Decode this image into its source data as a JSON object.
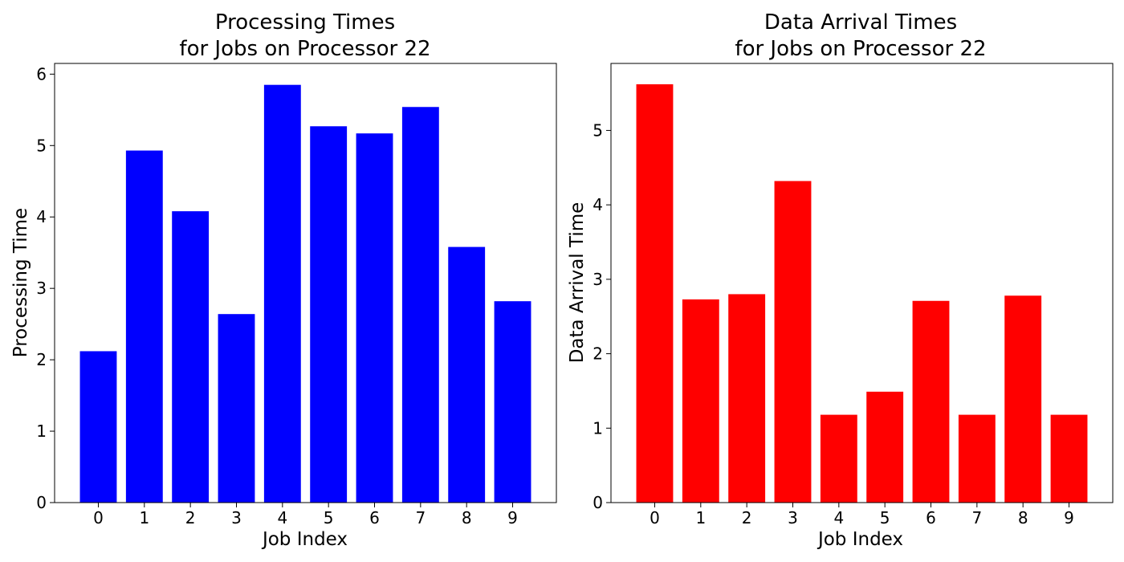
{
  "chart_data": [
    {
      "type": "bar",
      "title_lines": [
        "Processing Times",
        "for Jobs on Processor 22"
      ],
      "xlabel": "Job Index",
      "ylabel": "Processing Time",
      "categories": [
        "0",
        "1",
        "2",
        "3",
        "4",
        "5",
        "6",
        "7",
        "8",
        "9"
      ],
      "values": [
        2.12,
        4.93,
        4.08,
        2.64,
        5.85,
        5.27,
        5.17,
        5.54,
        3.58,
        2.82
      ],
      "ylim": [
        0,
        6.15
      ],
      "yticks": [
        0,
        1,
        2,
        3,
        4,
        5,
        6
      ],
      "color": "#0000ff",
      "grid": false,
      "legend": false
    },
    {
      "type": "bar",
      "title_lines": [
        "Data Arrival Times",
        "for Jobs on Processor 22"
      ],
      "xlabel": "Job Index",
      "ylabel": "Data Arrival Time",
      "categories": [
        "0",
        "1",
        "2",
        "3",
        "4",
        "5",
        "6",
        "7",
        "8",
        "9"
      ],
      "values": [
        5.62,
        2.73,
        2.8,
        4.32,
        1.18,
        1.49,
        2.71,
        1.18,
        2.78,
        1.18
      ],
      "ylim": [
        0,
        5.9
      ],
      "yticks": [
        0,
        1,
        2,
        3,
        4,
        5
      ],
      "color": "#ff0000",
      "grid": false,
      "legend": false
    }
  ]
}
